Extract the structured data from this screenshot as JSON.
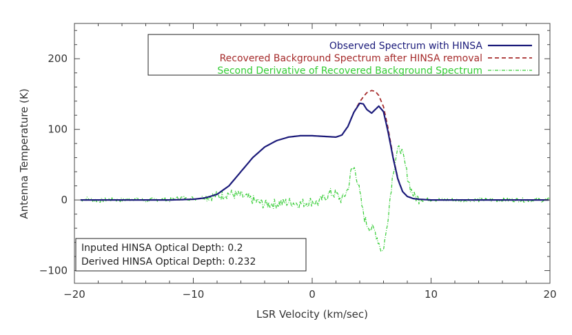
{
  "chart_data": {
    "type": "line",
    "title": "",
    "xlabel": "LSR Velocity (km/sec)",
    "ylabel": "Antenna Temperature (K)",
    "xlim": [
      -20,
      20
    ],
    "ylim": [
      -118,
      250
    ],
    "x_ticks": [
      -20,
      -10,
      0,
      10,
      20
    ],
    "x_tick_labels": [
      "−20",
      "−10",
      "0",
      "10",
      "20"
    ],
    "y_ticks": [
      -100,
      0,
      100,
      200
    ],
    "y_tick_labels": [
      "−100",
      "0",
      "100",
      "200"
    ],
    "grid": false,
    "legend_position": "top-right",
    "series": [
      {
        "name": "Observed Spectrum with HINSA",
        "color": "#1a1a7a",
        "style": "solid",
        "x": [
          -19.5,
          -16,
          -12,
          -10,
          -9,
          -8,
          -7,
          -6,
          -5,
          -4,
          -3,
          -2,
          -1,
          0,
          1,
          2,
          2.5,
          3,
          3.5,
          4,
          4.3,
          4.6,
          5,
          5.3,
          5.6,
          6,
          6.4,
          6.8,
          7.2,
          7.6,
          8,
          8.5,
          9,
          10,
          12,
          15,
          20
        ],
        "y": [
          0,
          0,
          0,
          1,
          3,
          8,
          20,
          40,
          60,
          75,
          84,
          89,
          91,
          91,
          90,
          89,
          92,
          104,
          124,
          137,
          136,
          128,
          123,
          128,
          133,
          125,
          95,
          60,
          30,
          12,
          5,
          2,
          1,
          0,
          0,
          0,
          0
        ]
      },
      {
        "name": "Recovered Background Spectrum after HINSA removal",
        "color": "#a52a2a",
        "style": "dashed",
        "x": [
          -19.5,
          -16,
          -12,
          -10,
          -9,
          -8,
          -7,
          -6,
          -5,
          -4,
          -3,
          -2,
          -1,
          0,
          1,
          2,
          2.5,
          3,
          3.5,
          4,
          4.3,
          4.6,
          5,
          5.3,
          5.6,
          6,
          6.4,
          6.8,
          7.2,
          7.6,
          8,
          8.5,
          9,
          10,
          12,
          15,
          20
        ],
        "y": [
          0,
          0,
          0,
          1,
          3,
          8,
          20,
          40,
          60,
          75,
          84,
          89,
          91,
          91,
          90,
          89,
          92,
          104,
          124,
          139,
          146,
          152,
          155,
          154,
          148,
          132,
          100,
          62,
          31,
          12,
          5,
          2,
          1,
          0,
          0,
          0,
          0
        ]
      },
      {
        "name": "Second Derivative of Recovered Background Spectrum",
        "color": "#33cc33",
        "style": "dash-dot",
        "x": [
          -19.5,
          -19,
          -18,
          -17,
          -16,
          -15,
          -14,
          -13,
          -12,
          -11,
          -10,
          -9,
          -8,
          -7,
          -6,
          -5,
          -4,
          -3,
          -2,
          -1,
          0,
          0.5,
          1,
          1.5,
          2,
          2.5,
          3,
          3.3,
          3.6,
          4,
          4.3,
          4.6,
          5,
          5.3,
          5.6,
          5.9,
          6.2,
          6.5,
          6.8,
          7.1,
          7.4,
          7.7,
          8,
          8.3,
          8.6,
          9,
          9.5,
          10,
          11,
          12,
          14,
          16,
          18,
          20
        ],
        "y": [
          0,
          2,
          -1,
          1,
          0,
          2,
          -1,
          1,
          0,
          3,
          2,
          4,
          6,
          9,
          6,
          0,
          -6,
          -5,
          -3,
          -5,
          -2,
          -4,
          3,
          10,
          8,
          0,
          15,
          42,
          45,
          10,
          -20,
          -35,
          -40,
          -45,
          -60,
          -75,
          -50,
          -5,
          40,
          65,
          75,
          58,
          35,
          15,
          5,
          1,
          0,
          1,
          0,
          0,
          0,
          0,
          0,
          0
        ]
      }
    ],
    "annotations": [
      "Inputed HINSA Optical Depth: 0.2",
      "Derived HINSA Optical Depth: 0.232"
    ]
  }
}
